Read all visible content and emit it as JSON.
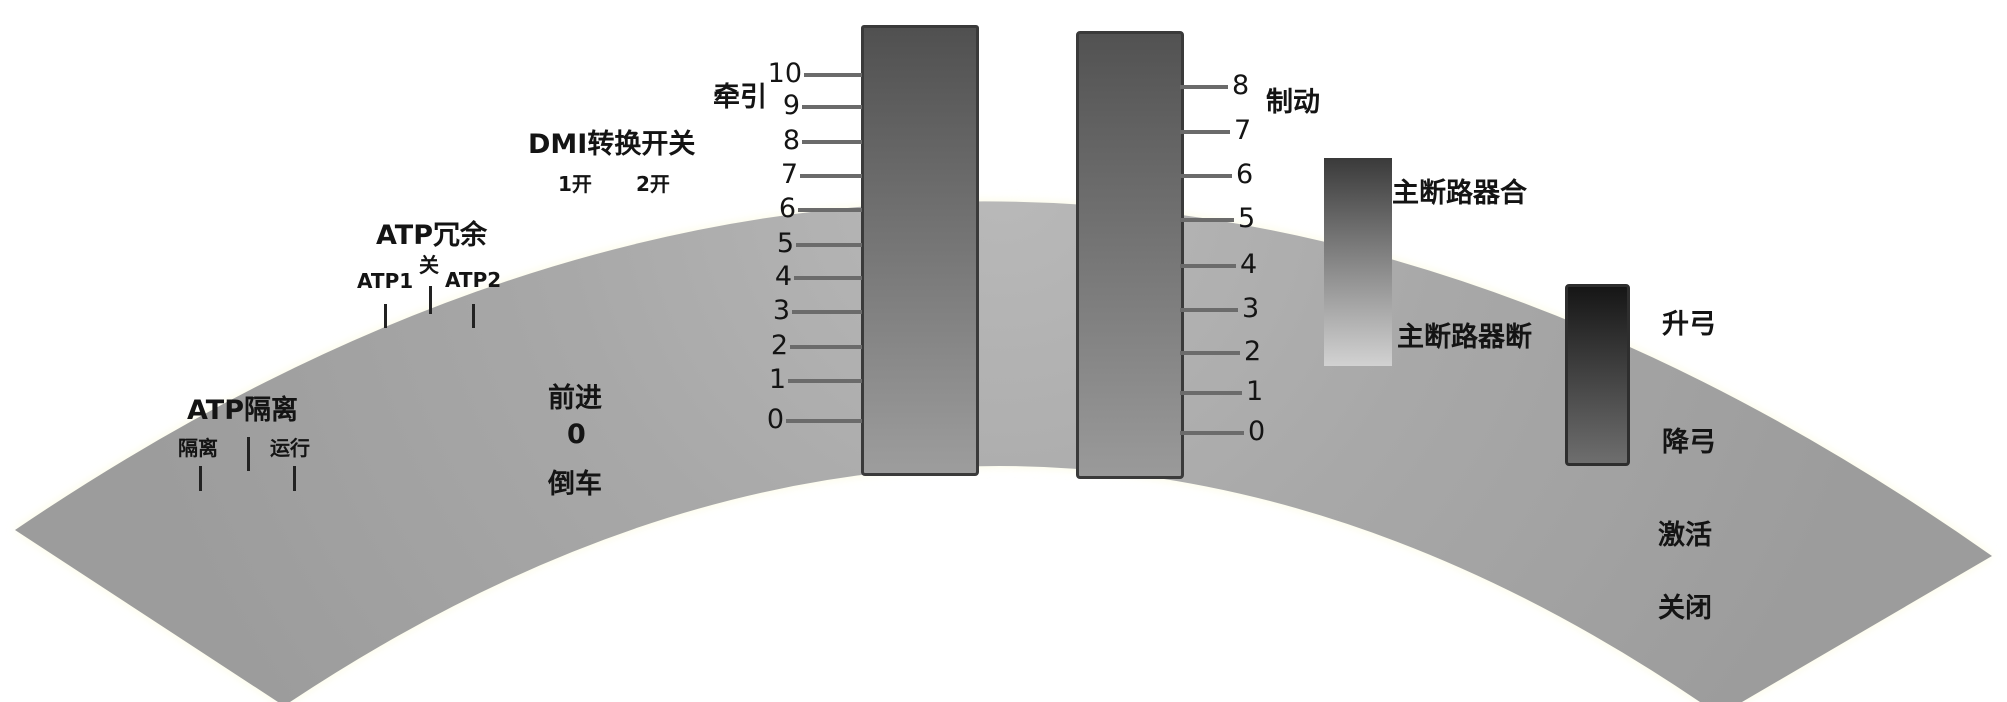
{
  "colors": {
    "panel": "#a3a3a3",
    "panel_glow": "#fbfae0",
    "text": "#141414",
    "handle_top": "#505050",
    "handle_bottom": "#9d9d9d",
    "tick": "#6b6b6b"
  },
  "atp_isolation": {
    "title": "ATP隔离",
    "left_label": "隔离",
    "right_label": "运行"
  },
  "atp_redundancy": {
    "title": "ATP冗余",
    "left_label": "ATP1",
    "center_label": "关",
    "right_label": "ATP2"
  },
  "dmi_switch": {
    "title": "DMI转换开关",
    "left_label": "1开",
    "right_label": "2开"
  },
  "direction": {
    "forward": "前进",
    "zero": "0",
    "reverse": "倒车"
  },
  "traction": {
    "title": "牵引",
    "scale": [
      "10",
      "9",
      "8",
      "7",
      "6",
      "5",
      "4",
      "3",
      "2",
      "1",
      "0"
    ]
  },
  "brake": {
    "title": "制动",
    "scale": [
      "8",
      "7",
      "6",
      "5",
      "4",
      "3",
      "2",
      "1",
      "0"
    ]
  },
  "main_breaker": {
    "close_label": "主断路器合",
    "open_label": "主断路器断"
  },
  "pantograph": {
    "up_label": "升弓",
    "down_label": "降弓"
  },
  "activation": {
    "activate_label": "激活",
    "close_label": "关闭"
  }
}
